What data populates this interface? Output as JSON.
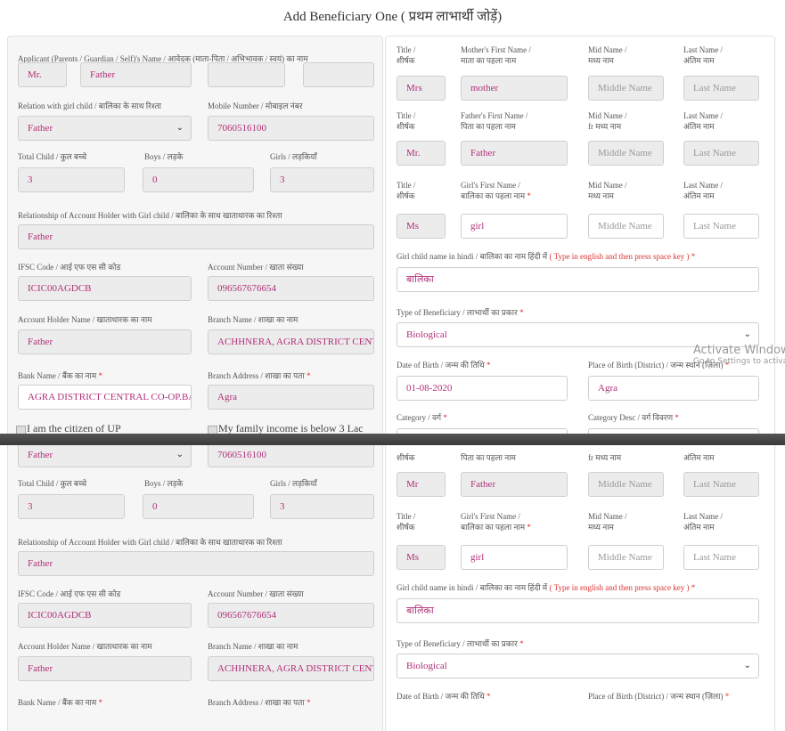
{
  "title": "Add Beneficiary One ( प्रथम लाभार्थी जोड़ें)",
  "required_mark": "*",
  "watermark": [
    "Activate Windows",
    "Go to Settings to activate Windows."
  ],
  "top_form": {
    "applicant_label": "Applicant (Parents / Guardian / Self)'s Name / आवेदक (माता-पिता / अभिभावक / स्वयं) का नाम",
    "applicant_title": "Mr.",
    "applicant_first": "Father",
    "relation_label": "Relation with girl child / बालिका के साथ रिश्ता",
    "relation_value": "Father",
    "mobile_label": "Mobile Number / मोबाइल नंबर",
    "mobile_value": "7060516100",
    "total_child_label": "Total Child / कुल बच्चे",
    "boys_label": "Boys / लड़के",
    "girls_label": "Girls / लड़कियाँ",
    "total_child": "3",
    "boys": "0",
    "girls": "3",
    "account_relation_label": "Relationship of Account Holder with Girl child / बालिका के साथ खाताधारक का रिश्ता",
    "account_relation_value": "Father",
    "ifsc_label": "IFSC Code / आई एफ एस सी कोड",
    "ifsc_value": "ICIC00AGDCB",
    "account_number_label": "Account Number / खाता संख्या",
    "account_number_value": "096567676654",
    "holder_label": "Account Holder Name / खाताधारक का नाम",
    "holder_value": "Father",
    "branch_label": "Branch Name / शाखा का नाम",
    "branch_value": "ACHHNERA, AGRA DISTRICT CENTRAL",
    "bank_label": "Bank Name / बैंक का नाम",
    "bank_value": "AGRA DISTRICT CENTRAL CO-OP.BANK",
    "branch_address_label": "Branch Address / शाखा का पता",
    "branch_address_value": "Agra",
    "citizen_label": "I am the citizen of UP",
    "income_label": "My family income is below 3 Lac",
    "mother_row": {
      "title_label": [
        "Title /",
        "शीर्षक"
      ],
      "name_label": [
        "Mother's First Name /",
        "माता का पहला नाम"
      ],
      "mid_label": [
        "Mid Name /",
        "मध्य नाम"
      ],
      "last_label": [
        "Last Name /",
        "अंतिम नाम"
      ],
      "title": "Mrs",
      "name": "mother",
      "mid": "Middle Name",
      "last": "Last Name"
    },
    "father_row": {
      "title_label": [
        "Title /",
        "शीर्षक"
      ],
      "name_label": [
        "Father's First Name /",
        "पिता का पहला नाम"
      ],
      "mid_label": [
        "Mid Name /",
        "fr मध्य नाम"
      ],
      "last_label": [
        "Last Name /",
        "अंतिम नाम"
      ],
      "title": "Mr.",
      "name": "Father",
      "mid": "Middle Name",
      "last": "Last Name"
    },
    "girl_row": {
      "title_label": [
        "Title /",
        "शीर्षक"
      ],
      "name_label": [
        "Girl's First Name /",
        "बालिका का पहला नाम"
      ],
      "mid_label": [
        "Mid Name /",
        "मध्य नाम"
      ],
      "last_label": [
        "Last Name /",
        "अंतिम नाम"
      ],
      "title": "Ms",
      "name": "girl",
      "mid": "Middle Name",
      "last": "Last Name"
    },
    "hindi_label": "Girl child name in hindi / बालिका का नाम हिंदी में",
    "hindi_hint": " ( Type in english and then press space key )",
    "hindi_value": "बालिका",
    "type_label": "Type of Beneficiary / लाभार्थी का प्रकार",
    "type_value": "Biological",
    "dob_label": "Date of Birth / जन्म की तिथि",
    "dob_value": "01-08-2020",
    "place_label": "Place of Birth (District) / जन्म स्थान (ज़िला)",
    "place_value": "Agra",
    "category_label": "Category / वर्ग",
    "category_desc_label": "Category Desc / वर्ग विवरण"
  },
  "bottom_form": {
    "relation_value": "Father",
    "mobile_value": "7060516100",
    "total_child_label": "Total Child / कुल बच्चे",
    "boys_label": "Boys / लड़के",
    "girls_label": "Girls / लड़कियाँ",
    "total_child": "3",
    "boys": "0",
    "girls": "3",
    "account_relation_label": "Relationship of Account Holder with Girl child / बालिका के साथ खाताधारक का रिश्ता",
    "account_relation_value": "Father",
    "ifsc_label": "IFSC Code / आई एफ एस सी कोड",
    "ifsc_value": "ICIC00AGDCB",
    "account_number_label": "Account Number / खाता संख्या",
    "account_number_value": "096567676654",
    "holder_label": "Account Holder Name / खाताधारक का नाम",
    "holder_value": "Father",
    "branch_label": "Branch Name / शाखा का नाम",
    "branch_value": "ACHHNERA, AGRA DISTRICT CENTRAL",
    "bank_label": "Bank Name / बैंक का नाम",
    "branch_address_label": "Branch Address / शाखा का पता",
    "father_row": {
      "title_label": "शीर्षक",
      "name_label": "पिता का पहला नाम",
      "mid_label": "fr मध्य नाम",
      "last_label": "अंतिम नाम",
      "title": "Mr",
      "name": "Father",
      "mid": "Middle Name",
      "last": "Last Name"
    },
    "girl_row": {
      "title_label": [
        "Title /",
        "शीर्षक"
      ],
      "name_label": [
        "Girl's First Name /",
        "बालिका का पहला नाम"
      ],
      "mid_label": [
        "Mid Name /",
        "मध्य नाम"
      ],
      "last_label": [
        "Last Name /",
        "अंतिम नाम"
      ],
      "title": "Ms",
      "name": "girl",
      "mid": "Middle Name",
      "last": "Last Name"
    },
    "hindi_label": "Girl child name in hindi / बालिका का नाम हिंदी में",
    "hindi_hint": " ( Type in english and then press space key )",
    "hindi_value": "बालिका",
    "type_label": "Type of Beneficiary / लाभार्थी का प्रकार",
    "type_value": "Biological",
    "dob_label": "Date of Birth / जन्म की तिथि",
    "place_label": "Place of Birth (District) / जन्म स्थान (ज़िला)"
  }
}
